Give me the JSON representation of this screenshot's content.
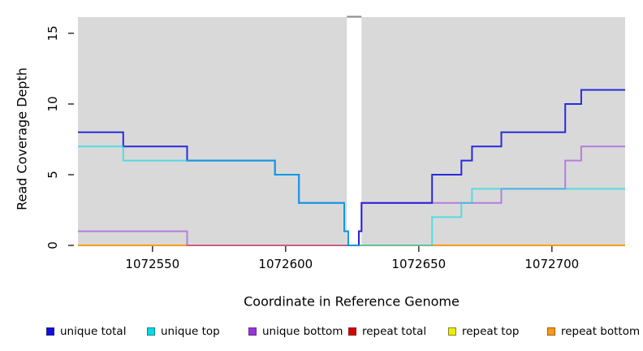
{
  "chart_data": {
    "type": "line",
    "subtype": "step-post",
    "title": "",
    "xlabel": "Coordinate in Reference Genome",
    "ylabel": "Read Coverage Depth",
    "x_ticks": [
      1072550,
      1072600,
      1072650,
      1072700
    ],
    "x_tick_labels": [
      "1072550",
      "1072600",
      "1072650",
      "1072700"
    ],
    "y_ticks": [
      0,
      5,
      10,
      15
    ],
    "y_tick_labels": [
      "0",
      "5",
      "10",
      "15"
    ],
    "x_range": [
      1072522,
      1072727.5
    ],
    "y_range": [
      0,
      16.2
    ],
    "grid": false,
    "plot_bg_color": "#d9d9d9",
    "page_bg_color": "#ffffff",
    "no_data_gap_x": [
      1072623,
      1072628.5
    ],
    "legend_position": "bottom",
    "series": [
      {
        "id": "unique_total",
        "label": "unique total",
        "color": "#1111dd",
        "steps": [
          [
            1072522,
            8
          ],
          [
            1072539,
            7
          ],
          [
            1072563,
            6
          ],
          [
            1072596,
            5
          ],
          [
            1072605,
            3
          ],
          [
            1072622,
            1
          ],
          [
            1072623.5,
            0
          ],
          [
            1072627.5,
            1
          ],
          [
            1072628.5,
            3
          ],
          [
            1072655,
            5
          ],
          [
            1072666,
            6
          ],
          [
            1072670,
            7
          ],
          [
            1072681,
            8
          ],
          [
            1072705,
            10
          ],
          [
            1072711,
            11
          ]
        ]
      },
      {
        "id": "unique_top",
        "label": "unique top",
        "color": "#00dde6",
        "steps": [
          [
            1072522,
            7
          ],
          [
            1072539,
            6
          ],
          [
            1072596,
            5
          ],
          [
            1072605,
            3
          ],
          [
            1072622,
            1
          ],
          [
            1072623.5,
            0
          ],
          [
            1072655,
            2
          ],
          [
            1072666,
            3
          ],
          [
            1072670,
            4
          ]
        ]
      },
      {
        "id": "unique_bottom",
        "label": "unique bottom",
        "color": "#9932e0",
        "steps": [
          [
            1072522,
            1
          ],
          [
            1072563,
            0
          ],
          [
            1072627.5,
            1
          ],
          [
            1072628.5,
            3
          ],
          [
            1072681,
            4
          ],
          [
            1072705,
            6
          ],
          [
            1072711,
            7
          ]
        ]
      },
      {
        "id": "repeat_total",
        "label": "repeat total",
        "color": "#dd0000",
        "steps": [
          [
            1072522,
            0
          ]
        ]
      },
      {
        "id": "repeat_top",
        "label": "repeat top",
        "color": "#f0ee00",
        "steps": [
          [
            1072522,
            0
          ]
        ]
      },
      {
        "id": "repeat_bottom",
        "label": "repeat bottom",
        "color": "#ff9911",
        "steps": [
          [
            1072522,
            0
          ]
        ]
      }
    ]
  }
}
